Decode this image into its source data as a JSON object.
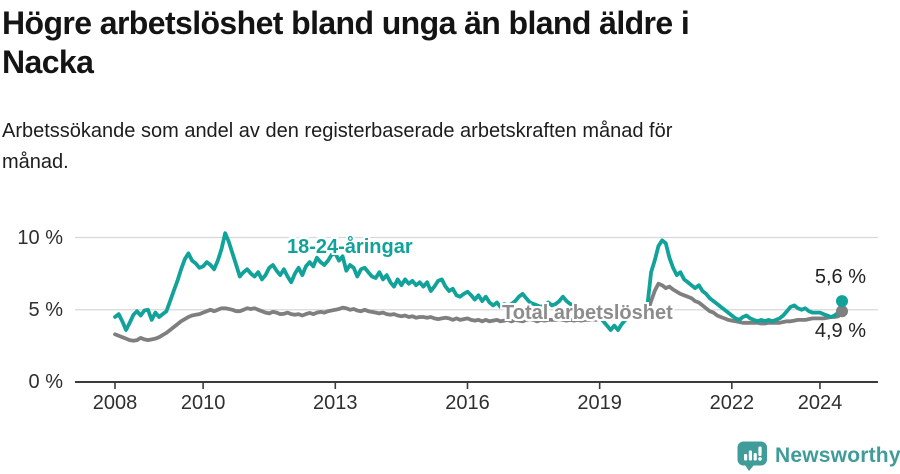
{
  "header": {
    "title": "Högre arbetslöshet bland unga än bland äldre i\nNacka",
    "subtitle": "Arbetssökande som andel av den registerbaserade arbetskraften månad för\nmånad."
  },
  "chart_data": {
    "type": "line",
    "title": "Högre arbetslöshet bland unga än bland äldre i Nacka",
    "subtitle": "Arbetssökande som andel av den registerbaserade arbetskraften månad för månad.",
    "x_start": "2008-01",
    "x_end": "2024-07",
    "x_frequency": "monthly",
    "x_tick_years": [
      2008,
      2010,
      2013,
      2016,
      2019,
      2022,
      2024
    ],
    "x_tick_labels": [
      "2008",
      "2010",
      "2013",
      "2016",
      "2019",
      "2022",
      "2024"
    ],
    "y_ticks": [
      {
        "value": 0,
        "label": "0 %"
      },
      {
        "value": 5,
        "label": "5 %"
      },
      {
        "value": 10,
        "label": "10 %"
      }
    ],
    "ylim": [
      0,
      10.8
    ],
    "grid": "horizontal",
    "legend_position": "inline-labels",
    "series": [
      {
        "name": "Total arbetslöshet",
        "color": "#7f7f7f",
        "end_label": "4,9 %",
        "end_value": 4.9,
        "values": [
          3.3,
          3.2,
          3.1,
          3.0,
          2.9,
          2.85,
          2.9,
          3.05,
          2.95,
          2.9,
          2.95,
          3.0,
          3.1,
          3.25,
          3.4,
          3.6,
          3.8,
          4.0,
          4.2,
          4.35,
          4.5,
          4.6,
          4.65,
          4.7,
          4.8,
          4.9,
          5.0,
          4.9,
          5.0,
          5.1,
          5.1,
          5.05,
          5.0,
          4.9,
          4.9,
          5.0,
          5.1,
          5.05,
          5.1,
          5.0,
          4.9,
          4.8,
          4.75,
          4.85,
          4.8,
          4.7,
          4.72,
          4.8,
          4.7,
          4.65,
          4.7,
          4.6,
          4.7,
          4.78,
          4.7,
          4.8,
          4.85,
          4.8,
          4.9,
          4.95,
          5.0,
          5.05,
          5.15,
          5.1,
          5.0,
          5.05,
          4.95,
          4.9,
          5.0,
          4.9,
          4.85,
          4.8,
          4.75,
          4.8,
          4.7,
          4.65,
          4.7,
          4.6,
          4.55,
          4.6,
          4.5,
          4.55,
          4.45,
          4.5,
          4.5,
          4.45,
          4.5,
          4.4,
          4.35,
          4.4,
          4.45,
          4.4,
          4.3,
          4.4,
          4.3,
          4.35,
          4.4,
          4.3,
          4.25,
          4.3,
          4.2,
          4.3,
          4.2,
          4.25,
          4.3,
          4.2,
          4.25,
          4.3,
          4.2,
          4.3,
          4.25,
          4.2,
          4.3,
          4.35,
          4.3,
          4.2,
          4.3,
          4.25,
          4.3,
          4.3,
          4.3,
          4.35,
          4.3,
          4.25,
          4.3,
          4.25,
          4.3,
          4.25,
          4.3,
          4.3,
          4.35,
          4.3,
          4.4,
          4.35,
          4.4,
          4.35,
          4.4,
          4.4,
          4.45,
          4.4,
          4.45,
          4.5,
          4.55,
          4.6,
          4.6,
          4.8,
          5.6,
          6.3,
          6.8,
          6.7,
          6.5,
          6.6,
          6.4,
          6.25,
          6.1,
          6.0,
          5.9,
          5.8,
          5.6,
          5.5,
          5.3,
          5.1,
          4.9,
          4.8,
          4.6,
          4.5,
          4.4,
          4.3,
          4.25,
          4.2,
          4.15,
          4.1,
          4.1,
          4.1,
          4.1,
          4.1,
          4.05,
          4.05,
          4.1,
          4.1,
          4.1,
          4.1,
          4.15,
          4.2,
          4.2,
          4.25,
          4.3,
          4.3,
          4.3,
          4.35,
          4.4,
          4.4,
          4.4,
          4.4,
          4.45,
          4.5,
          4.5,
          4.55,
          4.9
        ]
      },
      {
        "name": "18-24-åringar",
        "color": "#11a29a",
        "end_label": "5,6 %",
        "end_value": 5.6,
        "values": [
          4.5,
          4.7,
          4.2,
          3.6,
          4.1,
          4.65,
          4.9,
          4.6,
          4.95,
          5.0,
          4.3,
          4.8,
          4.5,
          4.7,
          4.9,
          5.6,
          6.3,
          7.0,
          7.8,
          8.5,
          8.9,
          8.4,
          8.2,
          7.9,
          8.0,
          8.3,
          8.1,
          7.8,
          8.4,
          9.2,
          10.3,
          9.7,
          8.9,
          8.1,
          7.3,
          7.6,
          7.8,
          7.5,
          7.3,
          7.6,
          7.1,
          7.4,
          7.9,
          8.1,
          7.7,
          7.4,
          7.8,
          7.3,
          6.9,
          7.5,
          7.9,
          7.4,
          8.0,
          8.3,
          8.0,
          8.6,
          8.3,
          8.1,
          8.4,
          8.8,
          8.9,
          8.4,
          8.7,
          7.7,
          8.1,
          7.9,
          7.3,
          7.8,
          7.9,
          7.6,
          7.3,
          7.2,
          7.6,
          7.1,
          7.4,
          6.9,
          6.6,
          7.1,
          6.7,
          7.1,
          6.8,
          7.0,
          6.7,
          6.9,
          6.6,
          6.9,
          6.3,
          6.6,
          7.0,
          7.1,
          6.6,
          6.3,
          6.45,
          6.0,
          5.9,
          6.1,
          6.25,
          6.0,
          5.7,
          6.0,
          5.6,
          5.9,
          5.5,
          5.3,
          5.5,
          5.2,
          5.4,
          5.3,
          5.4,
          5.6,
          5.9,
          6.1,
          5.8,
          5.5,
          5.4,
          5.3,
          5.2,
          5.3,
          5.5,
          5.3,
          5.4,
          5.6,
          5.9,
          5.6,
          5.4,
          5.2,
          5.0,
          4.9,
          4.8,
          4.7,
          4.6,
          4.7,
          4.5,
          4.2,
          3.9,
          3.6,
          3.9,
          3.6,
          4.0,
          4.3,
          4.4,
          4.6,
          4.8,
          5.0,
          5.1,
          5.3,
          7.6,
          8.4,
          9.4,
          9.8,
          9.6,
          8.6,
          7.9,
          7.4,
          7.6,
          7.1,
          6.9,
          6.7,
          6.5,
          6.7,
          6.3,
          6.1,
          5.8,
          5.6,
          5.4,
          5.2,
          5.0,
          4.8,
          4.6,
          4.4,
          4.3,
          4.5,
          4.6,
          4.4,
          4.3,
          4.2,
          4.3,
          4.2,
          4.3,
          4.2,
          4.3,
          4.4,
          4.6,
          4.9,
          5.2,
          5.3,
          5.1,
          5.0,
          5.1,
          4.9,
          4.8,
          4.8,
          4.8,
          4.7,
          4.6,
          4.5,
          4.6,
          4.8,
          5.6
        ]
      }
    ]
  },
  "footer": {
    "brand": "Newsworthy",
    "logo_icon": "bar-chart-speech-bubble-icon"
  },
  "colors": {
    "teal": "#11a29a",
    "gray": "#7f7f7f",
    "grid": "#d8d8d8",
    "axis": "#3b3b3b",
    "text": "#141414",
    "brand_teal": "#3f9c99"
  }
}
